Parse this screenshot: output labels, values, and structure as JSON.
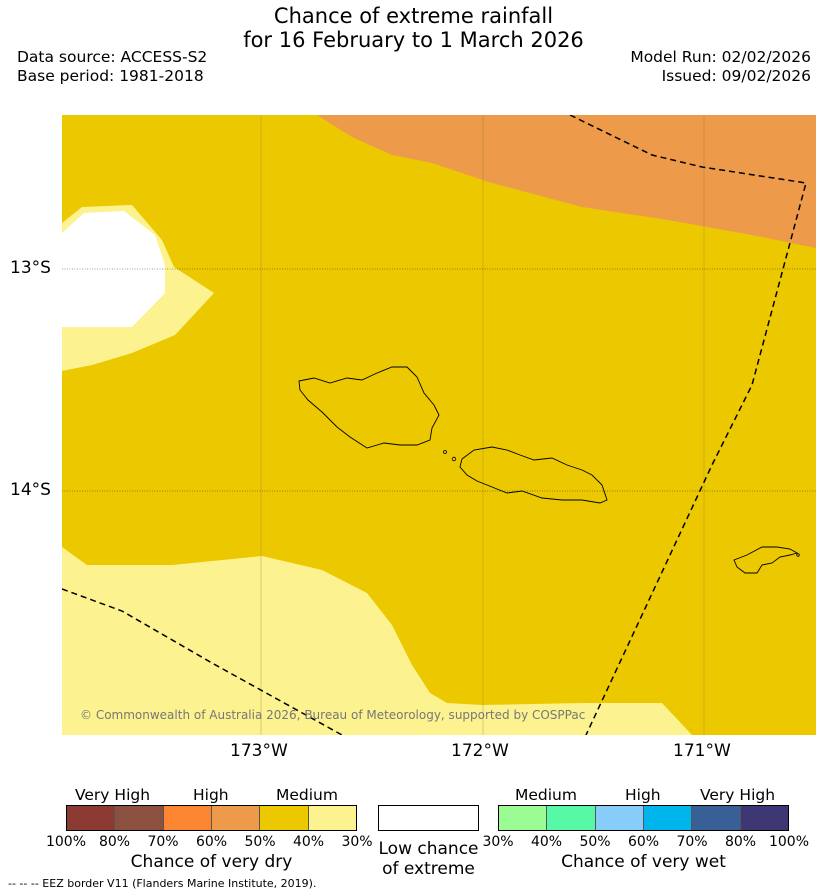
{
  "title": {
    "line1": "Chance of extreme rainfall",
    "line2": "for 16 February to 1 March 2026"
  },
  "meta": {
    "data_source": "Data source: ACCESS-S2",
    "base_period": "Base period: 1981-2018",
    "model_run": "Model Run: 02/02/2026",
    "issued": "Issued: 09/02/2026"
  },
  "axes": {
    "lat_labels": [
      "13°S",
      "14°S"
    ],
    "lon_labels": [
      "173°W",
      "172°W",
      "171°W"
    ]
  },
  "copyright": "© Commonwealth of Australia 2026, Bureau of Meteorology, supported by COSPPac",
  "legend_dry": {
    "categories": [
      "Very High",
      "High",
      "Medium"
    ],
    "ticks": [
      "100%",
      "80%",
      "70%",
      "60%",
      "50%",
      "40%",
      "30%"
    ],
    "title": "Chance of very dry",
    "colors": [
      "#8b3a34",
      "#8c5040",
      "#fb8530",
      "#ed9a4a",
      "#ecc800",
      "#fcf390"
    ]
  },
  "legend_low": {
    "line1": "Low chance",
    "line2": "of extreme",
    "color": "#ffffff"
  },
  "legend_wet": {
    "categories": [
      "Medium",
      "High",
      "Very High"
    ],
    "ticks": [
      "30%",
      "40%",
      "50%",
      "60%",
      "70%",
      "80%",
      "100%"
    ],
    "title": "Chance of very wet",
    "colors": [
      "#9cfc94",
      "#58f9a6",
      "#88ccfa",
      "#00b4ec",
      "#386096",
      "#3d3874"
    ]
  },
  "footnote": "--  --  -- EEZ border V11 (Flanders Marine Institute, 2019)."
}
